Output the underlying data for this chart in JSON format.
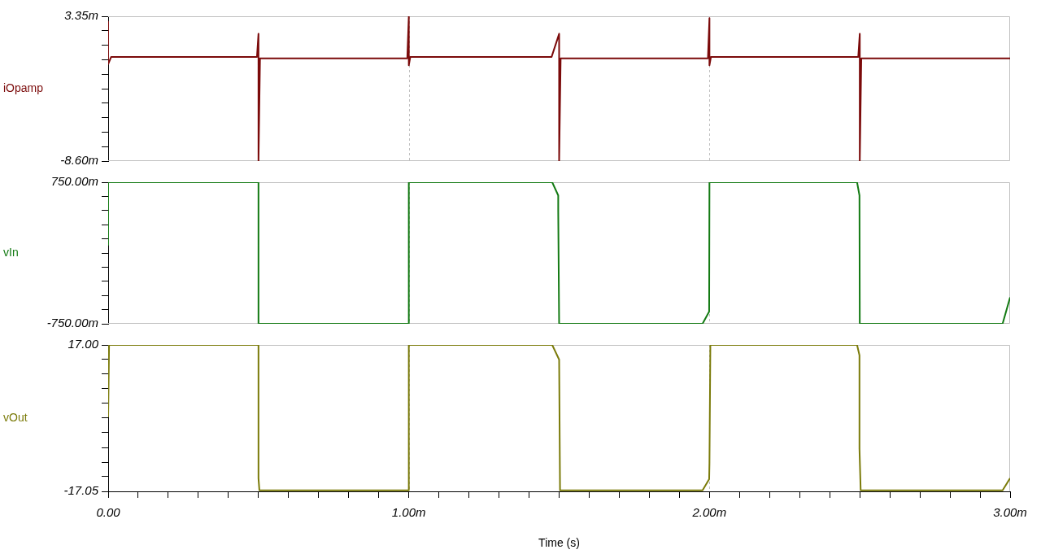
{
  "chart_data": [
    {
      "type": "line",
      "ylabel": "iOpamp",
      "tick_labels": "y",
      "grid": "x",
      "xlim": [
        0,
        3
      ],
      "xticks": [
        0,
        1,
        2,
        3
      ],
      "ylim": [
        -8.6,
        3.35
      ],
      "yticks": [
        {
          "value": 3.35,
          "label": "3.35m"
        },
        {
          "value": 2.155,
          "label": null
        },
        {
          "value": 0.96,
          "label": null
        },
        {
          "value": -0.235,
          "label": null
        },
        {
          "value": -1.43,
          "label": null
        },
        {
          "value": -2.625,
          "label": null
        },
        {
          "value": -3.82,
          "label": null
        },
        {
          "value": -5.015,
          "label": null
        },
        {
          "value": -6.21,
          "label": null
        },
        {
          "value": -7.405,
          "label": null
        },
        {
          "value": -8.6,
          "label": "-8.60m"
        }
      ],
      "series": [
        {
          "color": "#7b0a0a",
          "x": [
            0,
            0,
            0.01,
            0.495,
            0.5,
            0.5,
            0.505,
            0.995,
            1,
            1,
            1.005,
            1.475,
            1.5,
            1.5,
            1.505,
            1.995,
            2,
            2,
            2.005,
            2.495,
            2.5,
            2.5,
            2.505,
            3
          ],
          "values": [
            2.9,
            -0.6,
            0.0,
            0.0,
            1.9,
            -8.6,
            -0.13,
            -0.13,
            3.35,
            -0.7,
            0.0,
            0.0,
            1.9,
            -8.6,
            -0.13,
            -0.13,
            3.2,
            -0.7,
            0.0,
            0.0,
            1.9,
            -8.6,
            -0.13,
            -0.13
          ]
        }
      ]
    },
    {
      "type": "line",
      "ylabel": "vIn",
      "tick_labels": "y",
      "grid": "x",
      "xlim": [
        0,
        3
      ],
      "xticks": [
        0,
        1,
        2,
        3
      ],
      "ylim": [
        -750,
        750
      ],
      "yticks": [
        {
          "value": 750,
          "label": "750.00m"
        },
        {
          "value": 600,
          "label": null
        },
        {
          "value": 450,
          "label": null
        },
        {
          "value": 300,
          "label": null
        },
        {
          "value": 150,
          "label": null
        },
        {
          "value": 0,
          "label": null
        },
        {
          "value": -150,
          "label": null
        },
        {
          "value": -300,
          "label": null
        },
        {
          "value": -450,
          "label": null
        },
        {
          "value": -600,
          "label": null
        },
        {
          "value": -750,
          "label": "-750.00m"
        }
      ],
      "series": [
        {
          "color": "#137a13",
          "x": [
            0,
            0,
            0.5,
            0.5,
            1,
            1,
            1.477,
            1.497,
            1.497,
            1.5,
            1.977,
            1.999,
            2,
            2.491,
            2.499,
            2.5,
            2.975,
            3
          ],
          "values": [
            80,
            750,
            750,
            -750,
            -750,
            750,
            750,
            610,
            440,
            -750,
            -750,
            -620,
            750,
            750,
            610,
            -750,
            -750,
            -470
          ]
        }
      ]
    },
    {
      "type": "line",
      "ylabel": "vOut",
      "xlabel": "Time (s)",
      "grid": "x",
      "xlim": [
        0,
        3
      ],
      "xticks": [
        {
          "value": 0,
          "label": "0.00"
        },
        {
          "value": 0.1,
          "label": null
        },
        {
          "value": 0.2,
          "label": null
        },
        {
          "value": 0.3,
          "label": null
        },
        {
          "value": 0.4,
          "label": null
        },
        {
          "value": 0.5,
          "label": null
        },
        {
          "value": 0.6,
          "label": null
        },
        {
          "value": 0.7,
          "label": null
        },
        {
          "value": 0.8,
          "label": null
        },
        {
          "value": 0.9,
          "label": null
        },
        {
          "value": 1,
          "label": "1.00m"
        },
        {
          "value": 1.1,
          "label": null
        },
        {
          "value": 1.2,
          "label": null
        },
        {
          "value": 1.3,
          "label": null
        },
        {
          "value": 1.4,
          "label": null
        },
        {
          "value": 1.5,
          "label": null
        },
        {
          "value": 1.6,
          "label": null
        },
        {
          "value": 1.7,
          "label": null
        },
        {
          "value": 1.8,
          "label": null
        },
        {
          "value": 1.9,
          "label": null
        },
        {
          "value": 2,
          "label": "2.00m"
        },
        {
          "value": 2.1,
          "label": null
        },
        {
          "value": 2.2,
          "label": null
        },
        {
          "value": 2.3,
          "label": null
        },
        {
          "value": 2.4,
          "label": null
        },
        {
          "value": 2.5,
          "label": null
        },
        {
          "value": 2.6,
          "label": null
        },
        {
          "value": 2.7,
          "label": null
        },
        {
          "value": 2.8,
          "label": null
        },
        {
          "value": 2.9,
          "label": null
        },
        {
          "value": 3,
          "label": "3.00m"
        }
      ],
      "ylim": [
        -17.05,
        17.0
      ],
      "yticks": [
        {
          "value": 17.0,
          "label": "17.00"
        },
        {
          "value": 13.595,
          "label": null
        },
        {
          "value": 10.19,
          "label": null
        },
        {
          "value": 6.785,
          "label": null
        },
        {
          "value": 3.38,
          "label": null
        },
        {
          "value": -0.025,
          "label": null
        },
        {
          "value": -3.43,
          "label": null
        },
        {
          "value": -6.835,
          "label": null
        },
        {
          "value": -10.24,
          "label": null
        },
        {
          "value": -13.645,
          "label": null
        },
        {
          "value": -17.05,
          "label": "-17.05"
        }
      ],
      "series": [
        {
          "color": "#7b7b0a",
          "x": [
            0,
            0.003,
            0.5,
            0.5,
            0.503,
            1,
            1,
            1.477,
            1.5,
            1.503,
            1.977,
            1.999,
            2,
            2.003,
            2.491,
            2.499,
            2.499,
            2.503,
            2.975,
            3
          ],
          "values": [
            0.2,
            17.0,
            17.0,
            -14.0,
            -16.8,
            -16.8,
            17.0,
            17.0,
            13.6,
            -16.8,
            -16.8,
            -14.2,
            -10.5,
            17.0,
            17.0,
            14.6,
            -7.1,
            -16.8,
            -16.8,
            -14.0
          ]
        }
      ]
    }
  ]
}
